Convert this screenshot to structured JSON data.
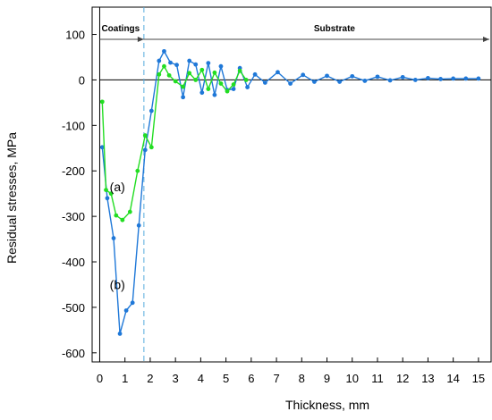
{
  "chart_data": {
    "type": "line",
    "title": "",
    "xlabel": "Thickness, mm",
    "ylabel": "Residual stresses, MPa",
    "xlim": [
      -0.3,
      15.5
    ],
    "ylim": [
      -620,
      160
    ],
    "x_ticks": [
      0,
      1,
      2,
      3,
      4,
      5,
      6,
      7,
      8,
      9,
      10,
      11,
      12,
      13,
      14,
      15
    ],
    "y_ticks": [
      100,
      0,
      -100,
      -200,
      -300,
      -400,
      -500,
      -600
    ],
    "zero_line": 0,
    "grid": false,
    "boundary_x": 1.75,
    "region_labels": {
      "coatings": "Coatings",
      "substrate": "Substrate"
    },
    "series": [
      {
        "name": "(a)",
        "color": "#22dd22",
        "points": [
          [
            0.1,
            -48
          ],
          [
            0.25,
            -242
          ],
          [
            0.45,
            -250
          ],
          [
            0.65,
            -298
          ],
          [
            0.9,
            -308
          ],
          [
            1.2,
            -290
          ],
          [
            1.5,
            -200
          ],
          [
            1.8,
            -122
          ],
          [
            2.05,
            -148
          ],
          [
            2.35,
            12
          ],
          [
            2.55,
            30
          ],
          [
            2.75,
            10
          ],
          [
            3.0,
            -3
          ],
          [
            3.3,
            -15
          ],
          [
            3.55,
            15
          ],
          [
            3.8,
            0
          ],
          [
            4.05,
            22
          ],
          [
            4.3,
            -20
          ],
          [
            4.55,
            16
          ],
          [
            4.8,
            -8
          ],
          [
            5.05,
            -25
          ],
          [
            5.3,
            -10
          ],
          [
            5.55,
            20
          ],
          [
            5.8,
            0
          ]
        ]
      },
      {
        "name": "(b)",
        "color": "#1f78d8",
        "points": [
          [
            0.1,
            -148
          ],
          [
            0.3,
            -260
          ],
          [
            0.55,
            -348
          ],
          [
            0.8,
            -558
          ],
          [
            1.05,
            -507
          ],
          [
            1.3,
            -490
          ],
          [
            1.55,
            -320
          ],
          [
            1.8,
            -154
          ],
          [
            2.05,
            -68
          ],
          [
            2.35,
            42
          ],
          [
            2.55,
            63
          ],
          [
            2.8,
            38
          ],
          [
            3.05,
            33
          ],
          [
            3.3,
            -38
          ],
          [
            3.55,
            42
          ],
          [
            3.8,
            34
          ],
          [
            4.05,
            -28
          ],
          [
            4.3,
            37
          ],
          [
            4.55,
            -33
          ],
          [
            4.8,
            30
          ],
          [
            5.05,
            -22
          ],
          [
            5.3,
            -20
          ],
          [
            5.55,
            26
          ],
          [
            5.85,
            -16
          ],
          [
            6.15,
            12
          ],
          [
            6.55,
            -6
          ],
          [
            7.05,
            17
          ],
          [
            7.55,
            -8
          ],
          [
            8.05,
            11
          ],
          [
            8.5,
            -4
          ],
          [
            9.0,
            9
          ],
          [
            9.5,
            -4
          ],
          [
            10.0,
            8
          ],
          [
            10.5,
            -2
          ],
          [
            11.0,
            7
          ],
          [
            11.5,
            -1
          ],
          [
            12.0,
            6
          ],
          [
            12.5,
            0
          ],
          [
            13.0,
            4
          ],
          [
            13.5,
            2
          ],
          [
            14.0,
            3
          ],
          [
            14.5,
            3
          ],
          [
            15.0,
            3
          ]
        ]
      }
    ]
  }
}
